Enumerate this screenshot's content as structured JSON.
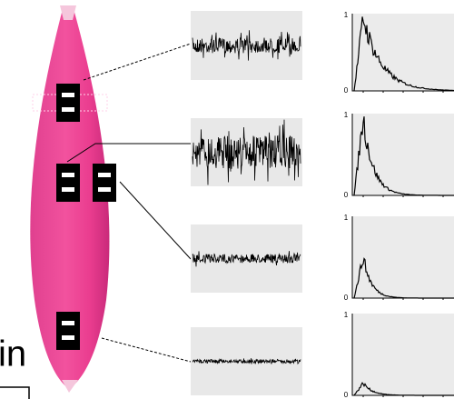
{
  "caption_fragment": "in",
  "spectra": [
    {
      "top_label": 1,
      "bottom_label": 0
    },
    {
      "top_label": 1,
      "bottom_label": 0
    },
    {
      "top_label": 1,
      "bottom_label": 0
    },
    {
      "top_label": 1,
      "bottom_label": 0
    }
  ]
}
